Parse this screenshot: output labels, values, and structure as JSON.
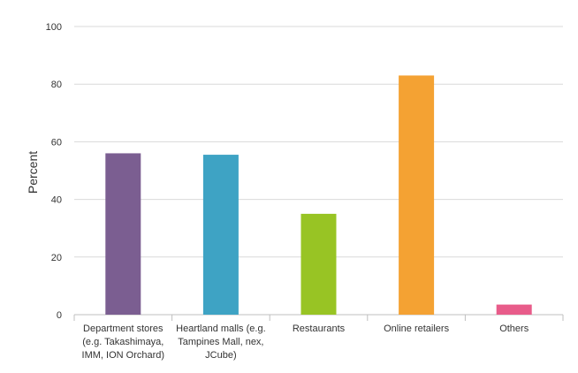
{
  "chart_data": {
    "type": "bar",
    "title": "",
    "xlabel": "",
    "ylabel": "Percent",
    "ylim": [
      0,
      100
    ],
    "yticks": [
      0,
      20,
      40,
      60,
      80,
      100
    ],
    "grid": true,
    "categories": [
      [
        "Department stores",
        "(e.g. Takashimaya,",
        "IMM, ION Orchard)"
      ],
      [
        "Heartland malls (e.g.",
        "Tampines Mall, nex,",
        "JCube)"
      ],
      [
        "Restaurants"
      ],
      [
        "Online retailers"
      ],
      [
        "Others"
      ]
    ],
    "values": [
      56,
      55.5,
      35,
      83,
      3.5
    ],
    "colors": [
      "#7b5e91",
      "#3ea3c4",
      "#98c424",
      "#f4a233",
      "#e85c8a"
    ],
    "grid_color": "#d9d9d9",
    "axis_color": "#bfbfbf"
  }
}
